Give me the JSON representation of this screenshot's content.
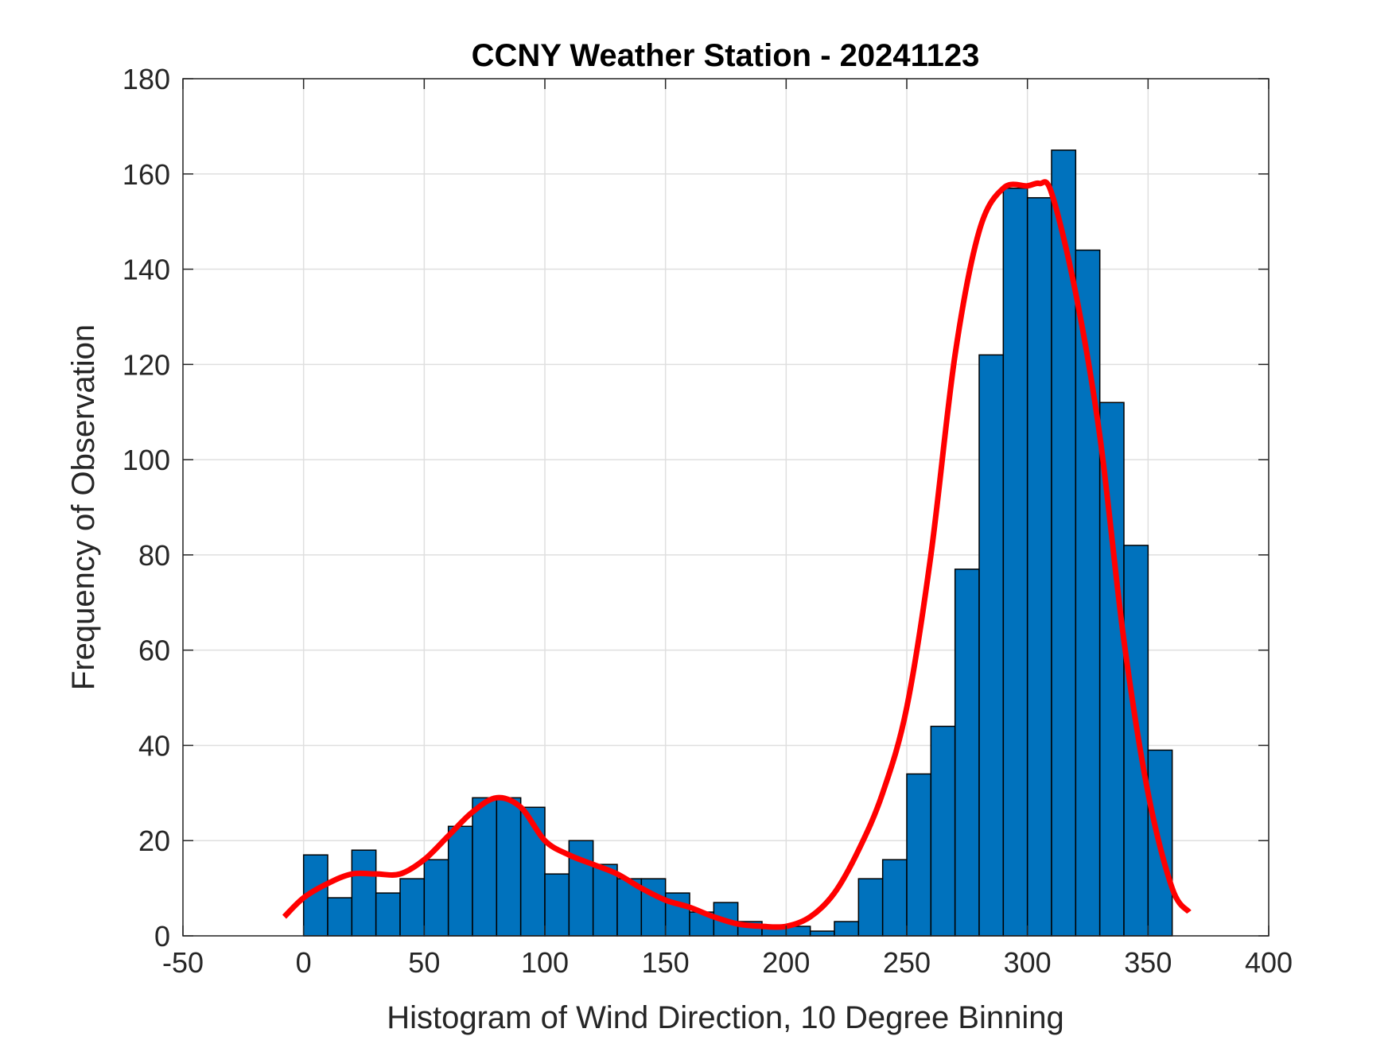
{
  "chart_data": {
    "type": "bar",
    "title": "CCNY Weather Station - 20241123",
    "xlabel": "Histogram of Wind Direction, 10 Degree Binning",
    "ylabel": "Frequency of Observation",
    "xlim": [
      -50,
      400
    ],
    "ylim": [
      0,
      180
    ],
    "x_ticks": [
      -50,
      0,
      50,
      100,
      150,
      200,
      250,
      300,
      350,
      400
    ],
    "y_ticks": [
      0,
      20,
      40,
      60,
      80,
      100,
      120,
      140,
      160,
      180
    ],
    "grid": true,
    "bin_width": 10,
    "bin_edges": [
      0,
      10,
      20,
      30,
      40,
      50,
      60,
      70,
      80,
      90,
      100,
      110,
      120,
      130,
      140,
      150,
      160,
      170,
      180,
      190,
      200,
      210,
      220,
      230,
      240,
      250,
      260,
      270,
      280,
      290,
      300,
      310,
      320,
      330,
      340,
      350,
      360
    ],
    "series": [
      {
        "type": "histogram",
        "values": [
          17,
          8,
          18,
          9,
          12,
          16,
          23,
          29,
          29,
          27,
          13,
          20,
          15,
          12,
          12,
          9,
          5,
          7,
          3,
          2,
          2,
          1,
          3,
          12,
          16,
          34,
          44,
          77,
          122,
          157,
          155,
          165,
          144,
          112,
          82,
          39
        ]
      },
      {
        "type": "line",
        "x": [
          -8,
          0,
          10,
          20,
          30,
          40,
          50,
          60,
          70,
          80,
          90,
          100,
          110,
          120,
          130,
          140,
          150,
          160,
          170,
          180,
          190,
          200,
          210,
          220,
          230,
          240,
          250,
          260,
          270,
          280,
          290,
          300,
          305,
          310,
          320,
          330,
          340,
          350,
          360,
          367
        ],
        "y": [
          4,
          8,
          11,
          13,
          13,
          13,
          16,
          21,
          26,
          29,
          27,
          20,
          17,
          15,
          13,
          10,
          7.5,
          6,
          4,
          2.5,
          2,
          2,
          4,
          9,
          18,
          30,
          48,
          80,
          122,
          148,
          157,
          157.5,
          158,
          156,
          135,
          105,
          62,
          30,
          10,
          5
        ]
      }
    ],
    "colors": {
      "bar_fill": "#0072BD",
      "bar_edge": "#000000",
      "fit_line": "#FF0000",
      "grid": "#DFDFDF",
      "axes": "#262626"
    }
  }
}
